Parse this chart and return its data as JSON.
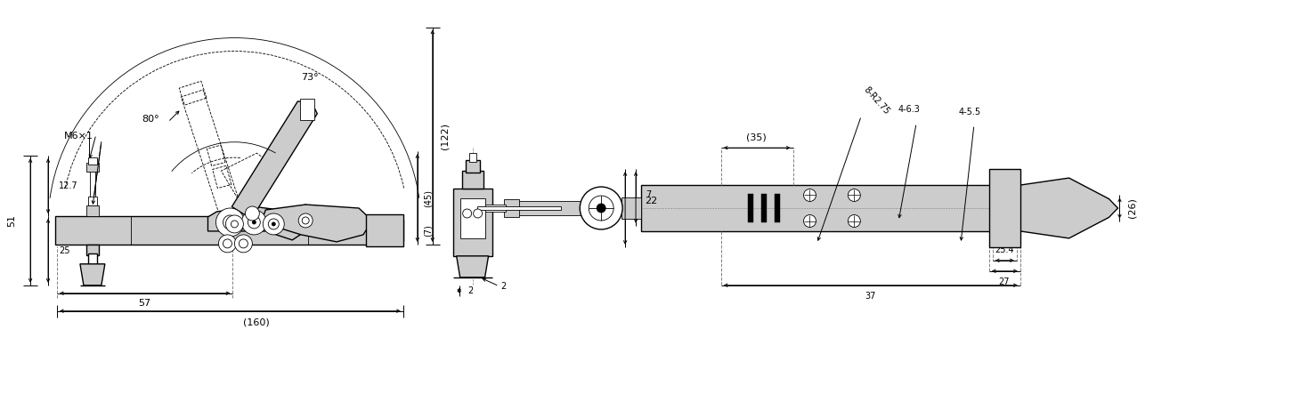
{
  "bg_color": "#ffffff",
  "line_color": "#000000",
  "light_gray": "#cccccc",
  "mid_gray": "#aaaaaa",
  "fig_width": 14.78,
  "fig_height": 4.7,
  "dpi": 100
}
